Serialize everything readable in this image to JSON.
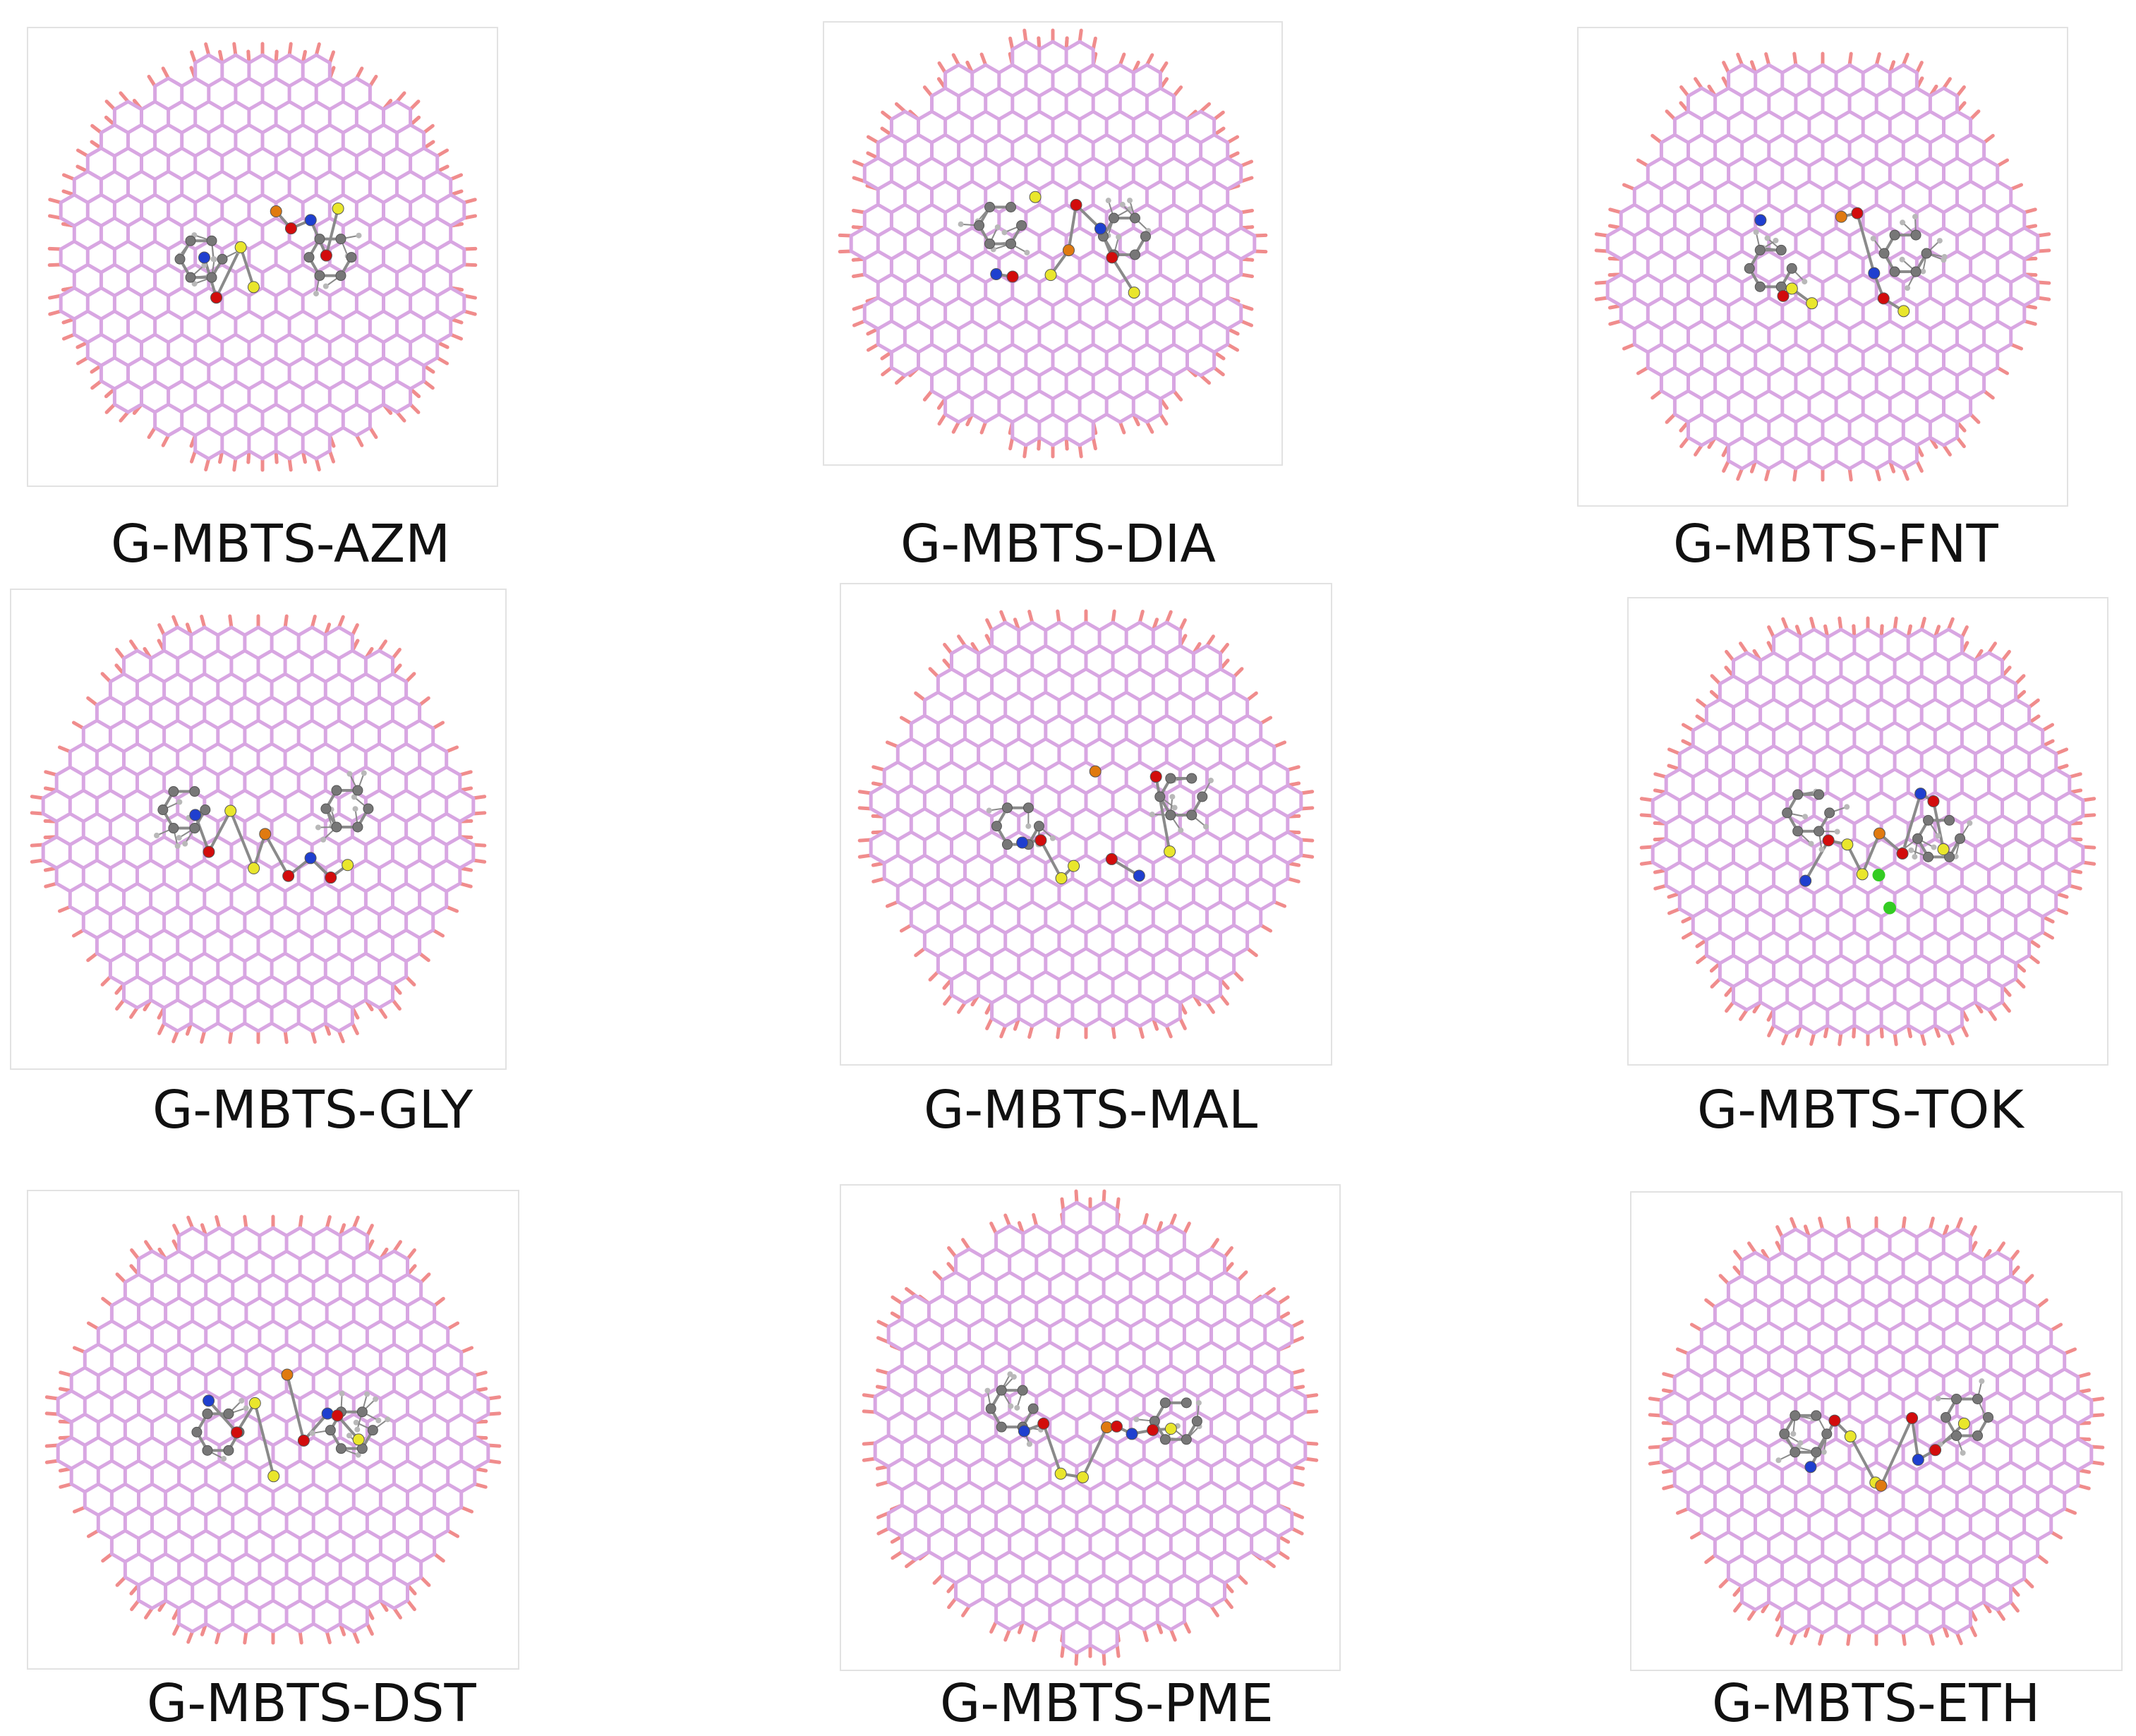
{
  "colors": {
    "lattice": "#d8a6e2",
    "edge_h": "#f08c8c",
    "carbon": "#777777",
    "hydrogen": "#b8b8b8",
    "nitrogen": "#1f3fcf",
    "oxygen": "#d20c0c",
    "sulfur": "#e9e62c",
    "phosphorus": "#e07a10",
    "chlorine": "#33cc22",
    "bond": "#8a8a8a"
  },
  "panels": [
    {
      "label": "G-MBTS-AZM",
      "icon": "graphene-complex-icon"
    },
    {
      "label": "G-MBTS-DIA",
      "icon": "graphene-complex-icon"
    },
    {
      "label": "G-MBTS-FNT",
      "icon": "graphene-complex-icon"
    },
    {
      "label": "G-MBTS-GLY",
      "icon": "graphene-complex-icon"
    },
    {
      "label": "G-MBTS-MAL",
      "icon": "graphene-complex-icon"
    },
    {
      "label": "G-MBTS-TOK",
      "icon": "graphene-complex-icon"
    },
    {
      "label": "G-MBTS-DST",
      "icon": "graphene-complex-icon"
    },
    {
      "label": "G-MBTS-PME",
      "icon": "graphene-complex-icon"
    },
    {
      "label": "G-MBTS-ETH",
      "icon": "graphene-complex-icon"
    }
  ]
}
